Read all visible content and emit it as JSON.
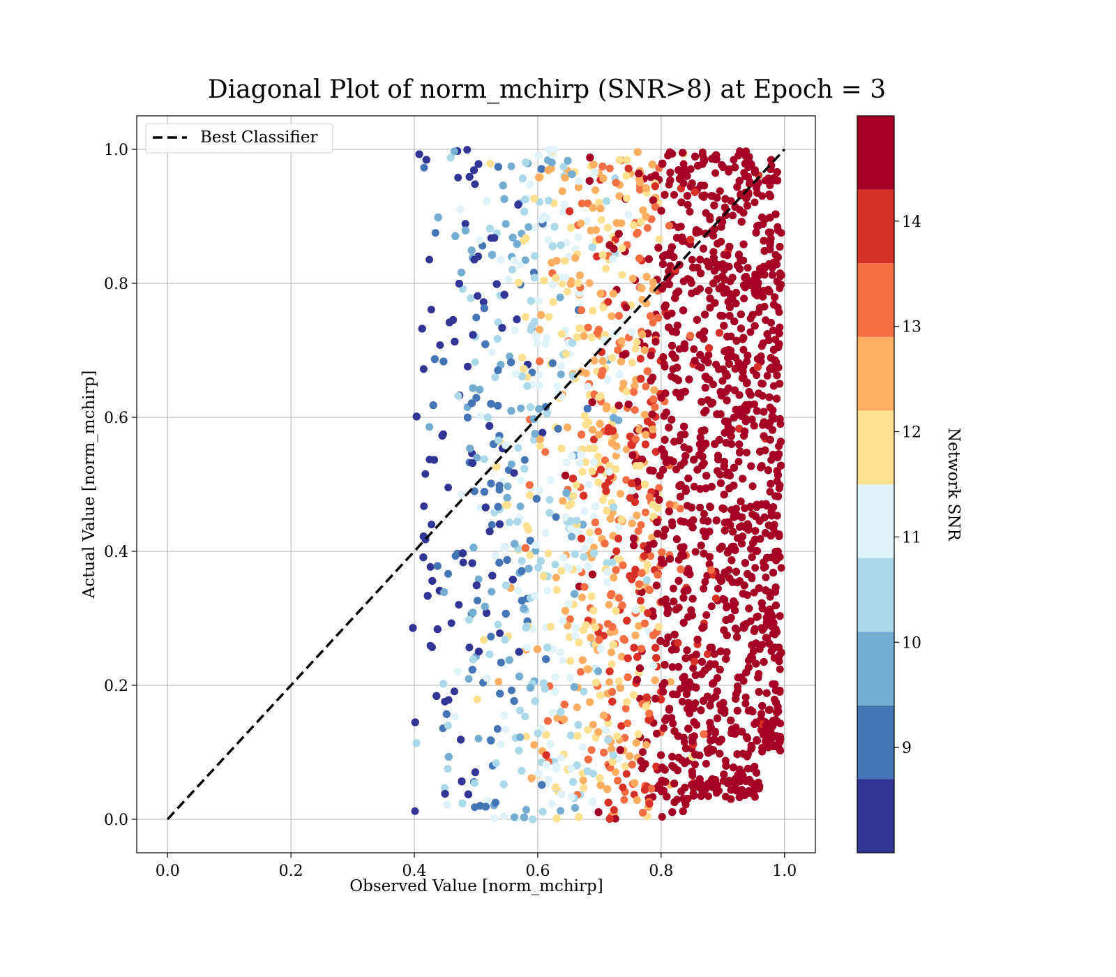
{
  "chart_data": {
    "type": "scatter",
    "title": "Diagonal Plot of norm_mchirp (SNR>8) at Epoch = 3",
    "xlabel": "Observed Value [norm_mchirp]",
    "ylabel": "Actual Value [norm_mchirp]",
    "xlim": [
      -0.05,
      1.05
    ],
    "ylim": [
      -0.05,
      1.05
    ],
    "xticks": [
      "0.0",
      "0.2",
      "0.4",
      "0.6",
      "0.8",
      "1.0"
    ],
    "yticks": [
      "0.0",
      "0.2",
      "0.4",
      "0.6",
      "0.8",
      "1.0"
    ],
    "grid": true,
    "legend": {
      "placement": "upper-left",
      "entries": [
        {
          "label": "Best Classifier",
          "style": "dashed",
          "color": "#000000"
        }
      ]
    },
    "reference_line": {
      "name": "Best Classifier",
      "x": [
        0.0,
        1.0
      ],
      "y": [
        0.0,
        1.0
      ],
      "style": "dashed",
      "color": "#000000"
    },
    "colorbar": {
      "label": "Network SNR",
      "range": [
        8.0,
        15.0
      ],
      "ticks": [
        "9",
        "10",
        "11",
        "12",
        "13",
        "14"
      ],
      "bins": [
        {
          "from": 8.0,
          "to": 8.7,
          "color": "#313695"
        },
        {
          "from": 8.7,
          "to": 9.4,
          "color": "#4575b4"
        },
        {
          "from": 9.4,
          "to": 10.1,
          "color": "#74add1"
        },
        {
          "from": 10.1,
          "to": 10.8,
          "color": "#abd9e9"
        },
        {
          "from": 10.8,
          "to": 11.5,
          "color": "#e0f3f8"
        },
        {
          "from": 11.5,
          "to": 12.2,
          "color": "#fee090"
        },
        {
          "from": 12.2,
          "to": 12.9,
          "color": "#fdae61"
        },
        {
          "from": 12.9,
          "to": 13.6,
          "color": "#f46d43"
        },
        {
          "from": 13.6,
          "to": 14.3,
          "color": "#d73027"
        },
        {
          "from": 14.3,
          "to": 15.0,
          "color": "#a50026"
        }
      ]
    },
    "scatter_summary": {
      "x_range": [
        0.39,
        1.0
      ],
      "y_range": [
        0.0,
        1.0
      ],
      "color_trend": "SNR increases with observed value: low SNR (blue) near x 0.4-0.65, high SNR (dark red) dense cluster at x 0.8-1.0",
      "approximate_density_by_x": [
        {
          "x": 0.4,
          "weight": 0.15
        },
        {
          "x": 0.45,
          "weight": 0.35
        },
        {
          "x": 0.5,
          "weight": 0.5
        },
        {
          "x": 0.55,
          "weight": 0.6
        },
        {
          "x": 0.6,
          "weight": 0.7
        },
        {
          "x": 0.65,
          "weight": 0.8
        },
        {
          "x": 0.7,
          "weight": 0.9
        },
        {
          "x": 0.75,
          "weight": 1.0
        },
        {
          "x": 0.8,
          "weight": 1.2
        },
        {
          "x": 0.85,
          "weight": 1.5
        },
        {
          "x": 0.9,
          "weight": 1.6
        },
        {
          "x": 0.95,
          "weight": 1.6
        },
        {
          "x": 0.99,
          "weight": 1.2
        }
      ]
    }
  }
}
